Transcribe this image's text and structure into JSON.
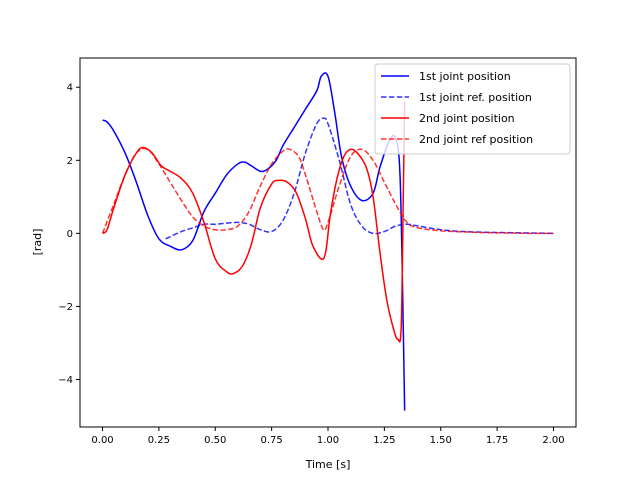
{
  "chart_data": {
    "type": "line",
    "title": "",
    "xlabel": "Time [s]",
    "ylabel": "[rad]",
    "xlim": [
      -0.1,
      2.1
    ],
    "ylim": [
      -5.3,
      4.8
    ],
    "xticks": [
      0.0,
      0.25,
      0.5,
      0.75,
      1.0,
      1.25,
      1.5,
      1.75,
      2.0
    ],
    "xtick_labels": [
      "0.00",
      "0.25",
      "0.50",
      "0.75",
      "1.00",
      "1.25",
      "1.50",
      "1.75",
      "2.00"
    ],
    "yticks": [
      -4,
      -2,
      0,
      2,
      4
    ],
    "ytick_labels": [
      "−4",
      "−2",
      "0",
      "2",
      "4"
    ],
    "grid": false,
    "legend_position": "top-right",
    "series": [
      {
        "name": "1st joint position",
        "color": "#0000ff",
        "style": "solid",
        "x": [
          0.0,
          0.02,
          0.05,
          0.1,
          0.15,
          0.2,
          0.25,
          0.3,
          0.35,
          0.4,
          0.45,
          0.5,
          0.55,
          0.6,
          0.63,
          0.66,
          0.7,
          0.73,
          0.77,
          0.8,
          0.85,
          0.9,
          0.95,
          0.97,
          1.0,
          1.03,
          1.06,
          1.1,
          1.15,
          1.2,
          1.23,
          1.27,
          1.3,
          1.32,
          1.335,
          1.34
        ],
        "y": [
          3.1,
          3.05,
          2.8,
          2.2,
          1.4,
          0.5,
          -0.15,
          -0.35,
          -0.45,
          -0.2,
          0.6,
          1.1,
          1.6,
          1.9,
          1.95,
          1.85,
          1.7,
          1.75,
          2.0,
          2.4,
          2.9,
          3.4,
          3.9,
          4.3,
          4.3,
          3.3,
          2.1,
          1.3,
          0.9,
          1.1,
          1.8,
          2.5,
          2.6,
          1.5,
          -3.0,
          -4.85
        ]
      },
      {
        "name": "1st joint ref. position",
        "color": "#0000ff",
        "style": "dashed",
        "x": [
          0.28,
          0.35,
          0.4,
          0.45,
          0.5,
          0.55,
          0.6,
          0.65,
          0.7,
          0.75,
          0.8,
          0.85,
          0.9,
          0.95,
          0.98,
          1.0,
          1.05,
          1.1,
          1.15,
          1.2,
          1.25,
          1.3,
          1.35,
          1.4,
          1.5,
          1.6,
          1.7,
          1.8,
          1.9,
          2.0
        ],
        "y": [
          -0.15,
          0.05,
          0.15,
          0.25,
          0.25,
          0.28,
          0.3,
          0.25,
          0.1,
          0.05,
          0.35,
          1.1,
          2.2,
          3.0,
          3.15,
          3.0,
          2.0,
          0.8,
          0.2,
          0.0,
          0.05,
          0.2,
          0.25,
          0.2,
          0.1,
          0.05,
          0.03,
          0.02,
          0.01,
          0.0
        ]
      },
      {
        "name": "2nd joint position",
        "color": "#ff0000",
        "style": "solid",
        "x": [
          0.0,
          0.02,
          0.05,
          0.1,
          0.15,
          0.18,
          0.22,
          0.26,
          0.3,
          0.35,
          0.4,
          0.45,
          0.5,
          0.55,
          0.58,
          0.62,
          0.66,
          0.7,
          0.75,
          0.78,
          0.82,
          0.86,
          0.9,
          0.93,
          0.97,
          0.99,
          1.01,
          1.04,
          1.07,
          1.1,
          1.13,
          1.17,
          1.2,
          1.23,
          1.26,
          1.29,
          1.31,
          1.325,
          1.335,
          1.34
        ],
        "y": [
          0.0,
          0.1,
          0.7,
          1.6,
          2.2,
          2.35,
          2.2,
          1.85,
          1.7,
          1.5,
          1.1,
          0.3,
          -0.7,
          -1.05,
          -1.1,
          -0.9,
          -0.3,
          0.7,
          1.35,
          1.45,
          1.4,
          1.1,
          0.4,
          -0.3,
          -0.7,
          -0.5,
          0.5,
          1.5,
          2.1,
          2.3,
          2.2,
          1.8,
          1.0,
          -0.5,
          -1.8,
          -2.6,
          -2.9,
          -2.5,
          1.5,
          3.6
        ]
      },
      {
        "name": "2nd joint ref position",
        "color": "#ff0000",
        "style": "dashed",
        "x": [
          0.0,
          0.05,
          0.1,
          0.15,
          0.2,
          0.25,
          0.3,
          0.35,
          0.4,
          0.45,
          0.5,
          0.55,
          0.6,
          0.65,
          0.7,
          0.75,
          0.8,
          0.83,
          0.87,
          0.9,
          0.95,
          0.98,
          1.0,
          1.05,
          1.1,
          1.15,
          1.2,
          1.25,
          1.3,
          1.35,
          1.4,
          1.5,
          1.6,
          1.7,
          1.8,
          1.9,
          2.0
        ],
        "y": [
          0.0,
          0.8,
          1.6,
          2.2,
          2.3,
          1.9,
          1.4,
          0.9,
          0.45,
          0.2,
          0.1,
          0.1,
          0.2,
          0.6,
          1.3,
          1.9,
          2.25,
          2.3,
          2.1,
          1.6,
          0.6,
          0.1,
          0.3,
          1.3,
          2.1,
          2.3,
          2.0,
          1.4,
          0.8,
          0.3,
          0.15,
          0.07,
          0.04,
          0.02,
          0.01,
          0.0,
          0.0
        ]
      }
    ]
  }
}
